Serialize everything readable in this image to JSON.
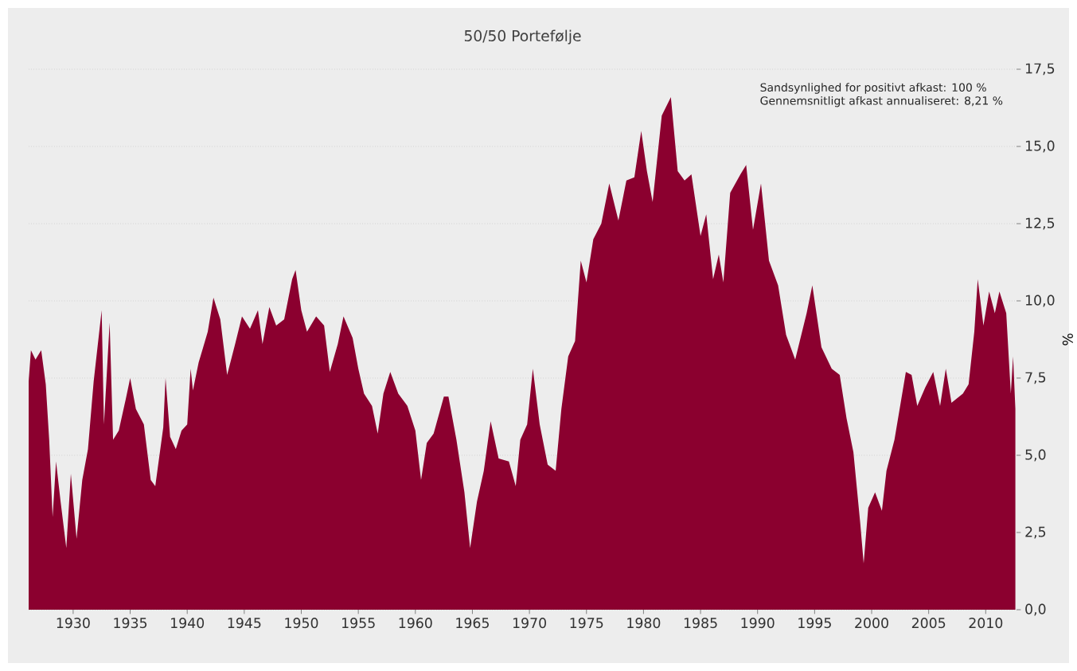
{
  "chart_data": {
    "type": "area",
    "title": "50/50 Portefølje",
    "ylabel": "%",
    "annotations": [
      "Sandsynlighed for positivt afkast: 100 %",
      "Gennemsnitligt afkast annualiseret: 8,21 %"
    ],
    "x": [
      1926.1,
      1926.3,
      1926.7,
      1927.2,
      1927.6,
      1927.9,
      1928.2,
      1928.5,
      1928.9,
      1929.4,
      1929.8,
      1930.3,
      1930.8,
      1931.3,
      1931.8,
      1932.5,
      1932.7,
      1933.2,
      1933.5,
      1934.0,
      1934.6,
      1935.0,
      1935.5,
      1936.2,
      1936.8,
      1937.2,
      1937.9,
      1938.1,
      1938.5,
      1939.0,
      1939.5,
      1940.0,
      1940.3,
      1940.5,
      1941.0,
      1941.8,
      1942.3,
      1942.9,
      1943.5,
      1944.2,
      1944.8,
      1945.5,
      1946.2,
      1946.6,
      1947.2,
      1947.8,
      1948.5,
      1949.2,
      1949.5,
      1950.0,
      1950.5,
      1951.3,
      1952.0,
      1952.5,
      1953.2,
      1953.7,
      1954.5,
      1955.0,
      1955.5,
      1956.2,
      1956.7,
      1957.2,
      1957.8,
      1958.5,
      1959.3,
      1960.0,
      1960.5,
      1961.0,
      1961.6,
      1962.5,
      1962.9,
      1963.6,
      1964.3,
      1964.8,
      1965.4,
      1966.0,
      1966.6,
      1967.3,
      1968.2,
      1968.8,
      1969.2,
      1969.8,
      1970.3,
      1970.9,
      1971.6,
      1972.3,
      1972.8,
      1973.4,
      1974.0,
      1974.5,
      1975.0,
      1975.6,
      1976.3,
      1977.0,
      1977.8,
      1978.5,
      1979.2,
      1979.8,
      1980.3,
      1980.8,
      1981.6,
      1982.4,
      1983.0,
      1983.6,
      1984.2,
      1985.0,
      1985.5,
      1986.1,
      1986.6,
      1987.0,
      1987.6,
      1988.5,
      1989.0,
      1989.6,
      1990.3,
      1991.0,
      1991.8,
      1992.5,
      1993.3,
      1994.3,
      1994.8,
      1995.6,
      1996.5,
      1997.2,
      1997.8,
      1998.4,
      1999.0,
      1999.3,
      1999.7,
      2000.3,
      2000.9,
      2001.3,
      2002.0,
      2003.0,
      2003.5,
      2004.0,
      2004.7,
      2005.4,
      2006.0,
      2006.5,
      2007.0,
      2008.0,
      2008.5,
      2009.0,
      2009.3,
      2009.8,
      2010.3,
      2010.8,
      2011.2,
      2011.8,
      2012.2,
      2012.4,
      2012.6
    ],
    "series": [
      {
        "color": "#8b002f",
        "values": [
          7.4,
          8.4,
          8.1,
          8.4,
          7.3,
          5.5,
          3.0,
          4.8,
          3.5,
          2.0,
          4.4,
          2.3,
          4.2,
          5.2,
          7.4,
          9.7,
          6.0,
          9.3,
          5.5,
          5.8,
          6.8,
          7.5,
          6.5,
          6.0,
          4.2,
          4.0,
          5.9,
          7.5,
          5.6,
          5.2,
          5.8,
          6.0,
          7.8,
          7.1,
          8.0,
          9.0,
          10.1,
          9.4,
          7.6,
          8.6,
          9.5,
          9.1,
          9.7,
          8.6,
          9.8,
          9.2,
          9.4,
          10.7,
          11.0,
          9.7,
          9.0,
          9.5,
          9.2,
          7.7,
          8.6,
          9.5,
          8.8,
          7.8,
          7.0,
          6.6,
          5.7,
          7.0,
          7.7,
          7.0,
          6.6,
          5.8,
          4.2,
          5.4,
          5.7,
          6.9,
          6.9,
          5.5,
          3.8,
          2.0,
          3.5,
          4.5,
          6.1,
          4.9,
          4.8,
          4.0,
          5.5,
          6.0,
          7.8,
          6.0,
          4.7,
          4.5,
          6.5,
          8.2,
          8.7,
          11.3,
          10.6,
          12.0,
          12.5,
          13.8,
          12.6,
          13.9,
          14.0,
          15.5,
          14.2,
          13.2,
          16.0,
          16.6,
          14.2,
          13.9,
          14.1,
          12.1,
          12.8,
          10.7,
          11.5,
          10.6,
          13.5,
          14.1,
          14.4,
          12.3,
          13.8,
          11.3,
          10.5,
          8.9,
          8.1,
          9.6,
          10.5,
          8.5,
          7.8,
          7.6,
          6.2,
          5.1,
          2.8,
          1.5,
          3.3,
          3.8,
          3.2,
          4.5,
          5.5,
          7.7,
          7.6,
          6.6,
          7.2,
          7.7,
          6.6,
          7.8,
          6.7,
          7.0,
          7.3,
          9.0,
          10.7,
          9.2,
          10.3,
          9.6,
          10.3,
          9.6,
          7.0,
          8.2,
          6.5
        ]
      }
    ],
    "xlim": [
      1926.1,
      2012.7
    ],
    "ylim": [
      0,
      17.5
    ],
    "xticks": [
      1930,
      1935,
      1940,
      1945,
      1950,
      1955,
      1960,
      1965,
      1970,
      1975,
      1980,
      1985,
      1990,
      1995,
      2000,
      2005,
      2010
    ],
    "yticks": [
      {
        "value": 0,
        "label": "0,0"
      },
      {
        "value": 2.5,
        "label": "2,5"
      },
      {
        "value": 5,
        "label": "5,0"
      },
      {
        "value": 7.5,
        "label": "7,5"
      },
      {
        "value": 10,
        "label": "10,0"
      },
      {
        "value": 12.5,
        "label": "12,5"
      },
      {
        "value": 15,
        "label": "15,0"
      },
      {
        "value": 17.5,
        "label": "17,5"
      }
    ],
    "grid": "y"
  }
}
